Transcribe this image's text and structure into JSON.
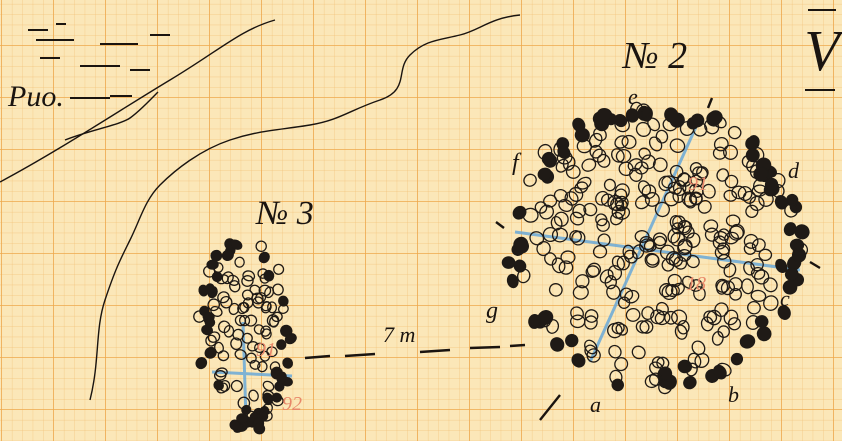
{
  "page_number": "V",
  "top_note": "Puo.",
  "scale_note": "7 m",
  "figures": [
    {
      "label": "№ 2",
      "points": [
        "e",
        "d",
        "c",
        "b",
        "a",
        "g",
        "f"
      ],
      "red_marks": [
        "91",
        "18"
      ]
    },
    {
      "label": "№ 3",
      "red_marks": [
        "91",
        "92"
      ]
    }
  ]
}
